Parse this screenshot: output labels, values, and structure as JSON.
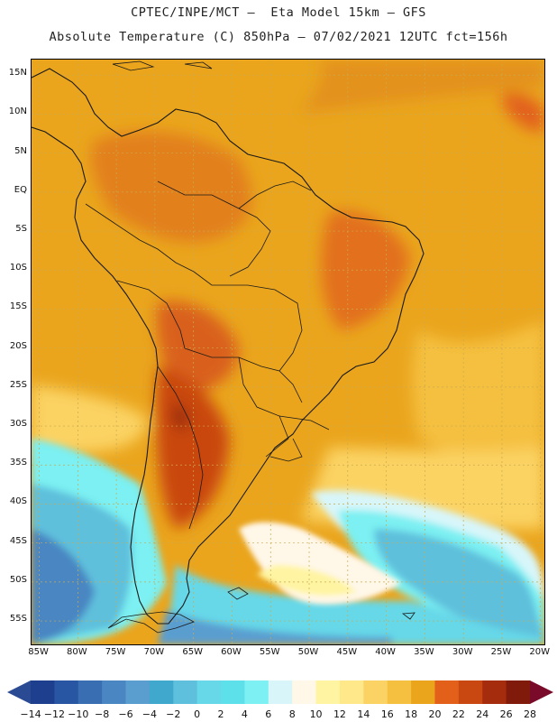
{
  "header": {
    "line1": "CPTEC/INPE/MCT –  Eta Model 15km – GFS",
    "line2": "Absolute Temperature (C) 850hPa – 07/02/2021 12UTC fct=156h"
  },
  "map": {
    "lat_labels": [
      "15N",
      "10N",
      "5N",
      "EQ",
      "5S",
      "10S",
      "15S",
      "20S",
      "25S",
      "30S",
      "35S",
      "40S",
      "45S",
      "50S",
      "55S"
    ],
    "lon_labels": [
      "85W",
      "80W",
      "75W",
      "70W",
      "65W",
      "60W",
      "55W",
      "50W",
      "45W",
      "40W",
      "35W",
      "30W",
      "25W",
      "20W"
    ],
    "lat_range": [
      17,
      -58
    ],
    "lon_range": [
      -86,
      -19.5
    ]
  },
  "legend": {
    "labels": [
      "-14",
      "-12",
      "-10",
      "-8",
      "-6",
      "-4",
      "-2",
      "0",
      "2",
      "4",
      "6",
      "8",
      "10",
      "12",
      "14",
      "16",
      "18",
      "20",
      "22",
      "24",
      "26",
      "28"
    ],
    "colors": [
      "#1e3e8e",
      "#2856a2",
      "#3a6eb2",
      "#4a86c2",
      "#5a9ed0",
      "#3fa8cc",
      "#5ec0dc",
      "#66d8e8",
      "#5ee0ea",
      "#7cf0f2",
      "#d8f6fa",
      "#fff7e8",
      "#fff4a2",
      "#fee88a",
      "#fbd364",
      "#f5c040",
      "#eaa51d",
      "#e2601a",
      "#c94710",
      "#a52c0c",
      "#801a0a"
    ],
    "under_color": "#2a4b94",
    "over_color": "#7a0a2a"
  }
}
